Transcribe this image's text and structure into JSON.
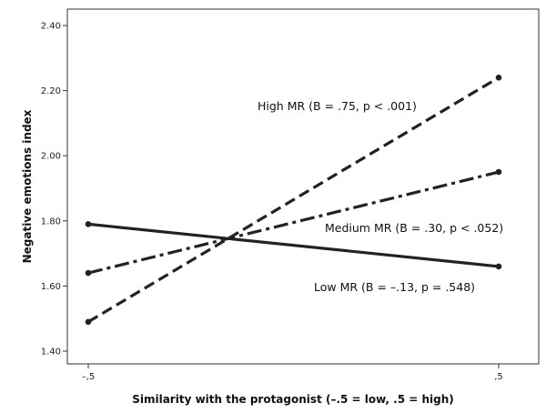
{
  "chart_data": {
    "type": "line",
    "xlabel": "Similarity with the protagonist (–.5 = low, .5 = high)",
    "ylabel": "Negative emotions index",
    "categories": [
      "–,5",
      ",5"
    ],
    "x": [
      -0.5,
      0.5
    ],
    "ylim": [
      1.35,
      2.42
    ],
    "yticks": [
      1.4,
      1.6,
      1.8,
      2.0,
      2.2,
      2.4
    ],
    "ytick_labels": [
      "1.40",
      "1.60",
      "1.80",
      "2.00",
      "2.20",
      "2.40"
    ],
    "grid": false,
    "series": [
      {
        "values": [
          1.49,
          2.24
        ],
        "style": "dashed",
        "color": "#222222"
      },
      {
        "values": [
          1.64,
          1.95
        ],
        "style": "dash-dot",
        "color": "#222222"
      },
      {
        "values": [
          1.79,
          1.66
        ],
        "style": "solid",
        "color": "#222222"
      }
    ],
    "annotations": [
      {
        "text": "High MR (B = .75, p < .001)",
        "series": 0
      },
      {
        "text": "Medium MR (B = .30, p < .052)",
        "series": 1
      },
      {
        "text": "Low MR (B = –.13, p = .548)",
        "series": 2
      }
    ]
  }
}
